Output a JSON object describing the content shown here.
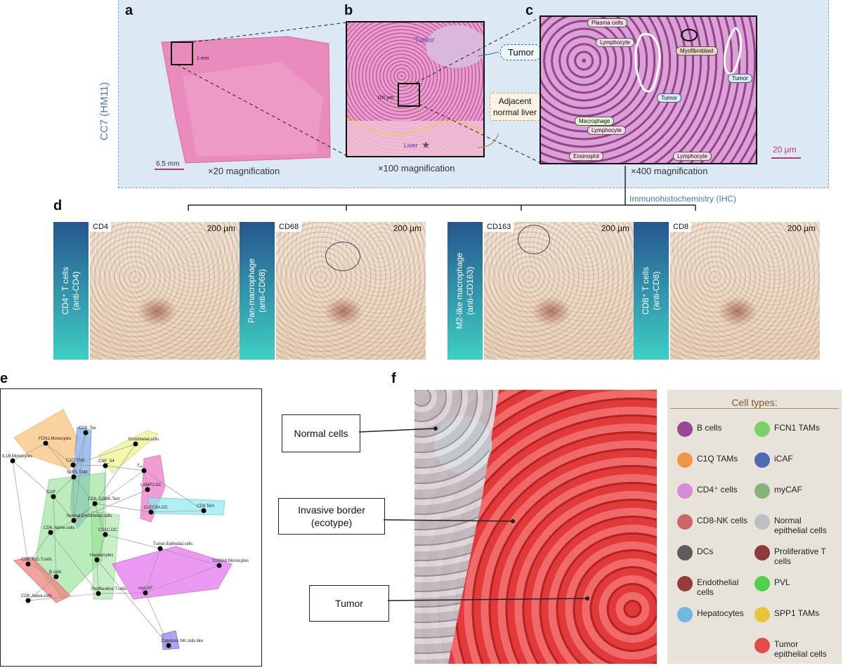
{
  "panels": {
    "a": "a",
    "b": "b",
    "c": "c",
    "d": "d",
    "e": "e",
    "f": "f"
  },
  "side_label": "CC7 (HM11)",
  "panel_a": {
    "mag": "×20 magnification",
    "scale": "6.5 mm",
    "inset_scale": "1 mm"
  },
  "panel_b": {
    "mag": "×100 magnification",
    "scale": "100 μm",
    "tumor": "Tumor",
    "liver": "Liver",
    "tumor_box": "Tumor",
    "normal_box": "Adjacent normal liver"
  },
  "panel_c": {
    "mag": "×400 magnification",
    "scale": "20 μm",
    "labels": [
      "Plasma cells",
      "Lymphocyte",
      "Myofibroblast",
      "Tumor",
      "Tumor",
      "Macrophage",
      "Lymphocyte",
      "Eosinophil",
      "Lymphocyte"
    ]
  },
  "ihc_title": "Immunohistochemistry (IHC)",
  "ihc": [
    {
      "side": "CD4⁺ T cells\n(anti-CD4)",
      "code": "CD4",
      "scale": "200 μm"
    },
    {
      "side": "Pan-macrophage\n(anti-CD68)",
      "code": "CD68",
      "scale": "200 μm"
    },
    {
      "side": "M2-like macrophage\n(anti-CD163)",
      "code": "CD163",
      "scale": "200 μm"
    },
    {
      "side": "CD8⁺ T cells\n(anti-CD8)",
      "code": "CD8",
      "scale": "200 μm"
    }
  ],
  "network_nodes": [
    "FCN1.Monocytes",
    "CD8..Tex",
    "IL1B.Monocytes",
    "Endothelial.cells",
    "C1Q.TAM",
    "CAF_S4",
    "Tₑₑ",
    "SPP1.TAM",
    "LAMP3.DC",
    "iCAF",
    "CD8..GZMK.Tem",
    "CD8.Tem",
    "Normal.Endothelial.cells",
    "CLEC9A.DC",
    "CD4..Naive.cells",
    "CD8..ISG.T.cells",
    "CD1C.DC",
    "Tumor.Epithelial.cells",
    "S100A8.Monocytes",
    "Hepatocytes",
    "B.cells",
    "Proliferative.T.cells",
    "myCAF",
    "CD8..Naive.cells",
    "Cytotoxic.NK.cells.like"
  ],
  "panel_f": {
    "normal": "Normal cells",
    "border": "Invasive border (ecotype)",
    "tumor": "Tumor",
    "legend_title": "Cell types:",
    "legend_left": [
      "B cells",
      "C1Q TAMs",
      "CD4⁺ cells",
      "CD8-NK cells",
      "DCs",
      "Endothelial cells",
      "Hepatocytes"
    ],
    "legend_right": [
      "FCN1 TAMs",
      "iCAF",
      "myCAF",
      "Normal epithelial cells",
      "Proliferative T cells",
      "PVL",
      "SPP1 TAMs",
      "Tumor epithelial cells"
    ]
  }
}
